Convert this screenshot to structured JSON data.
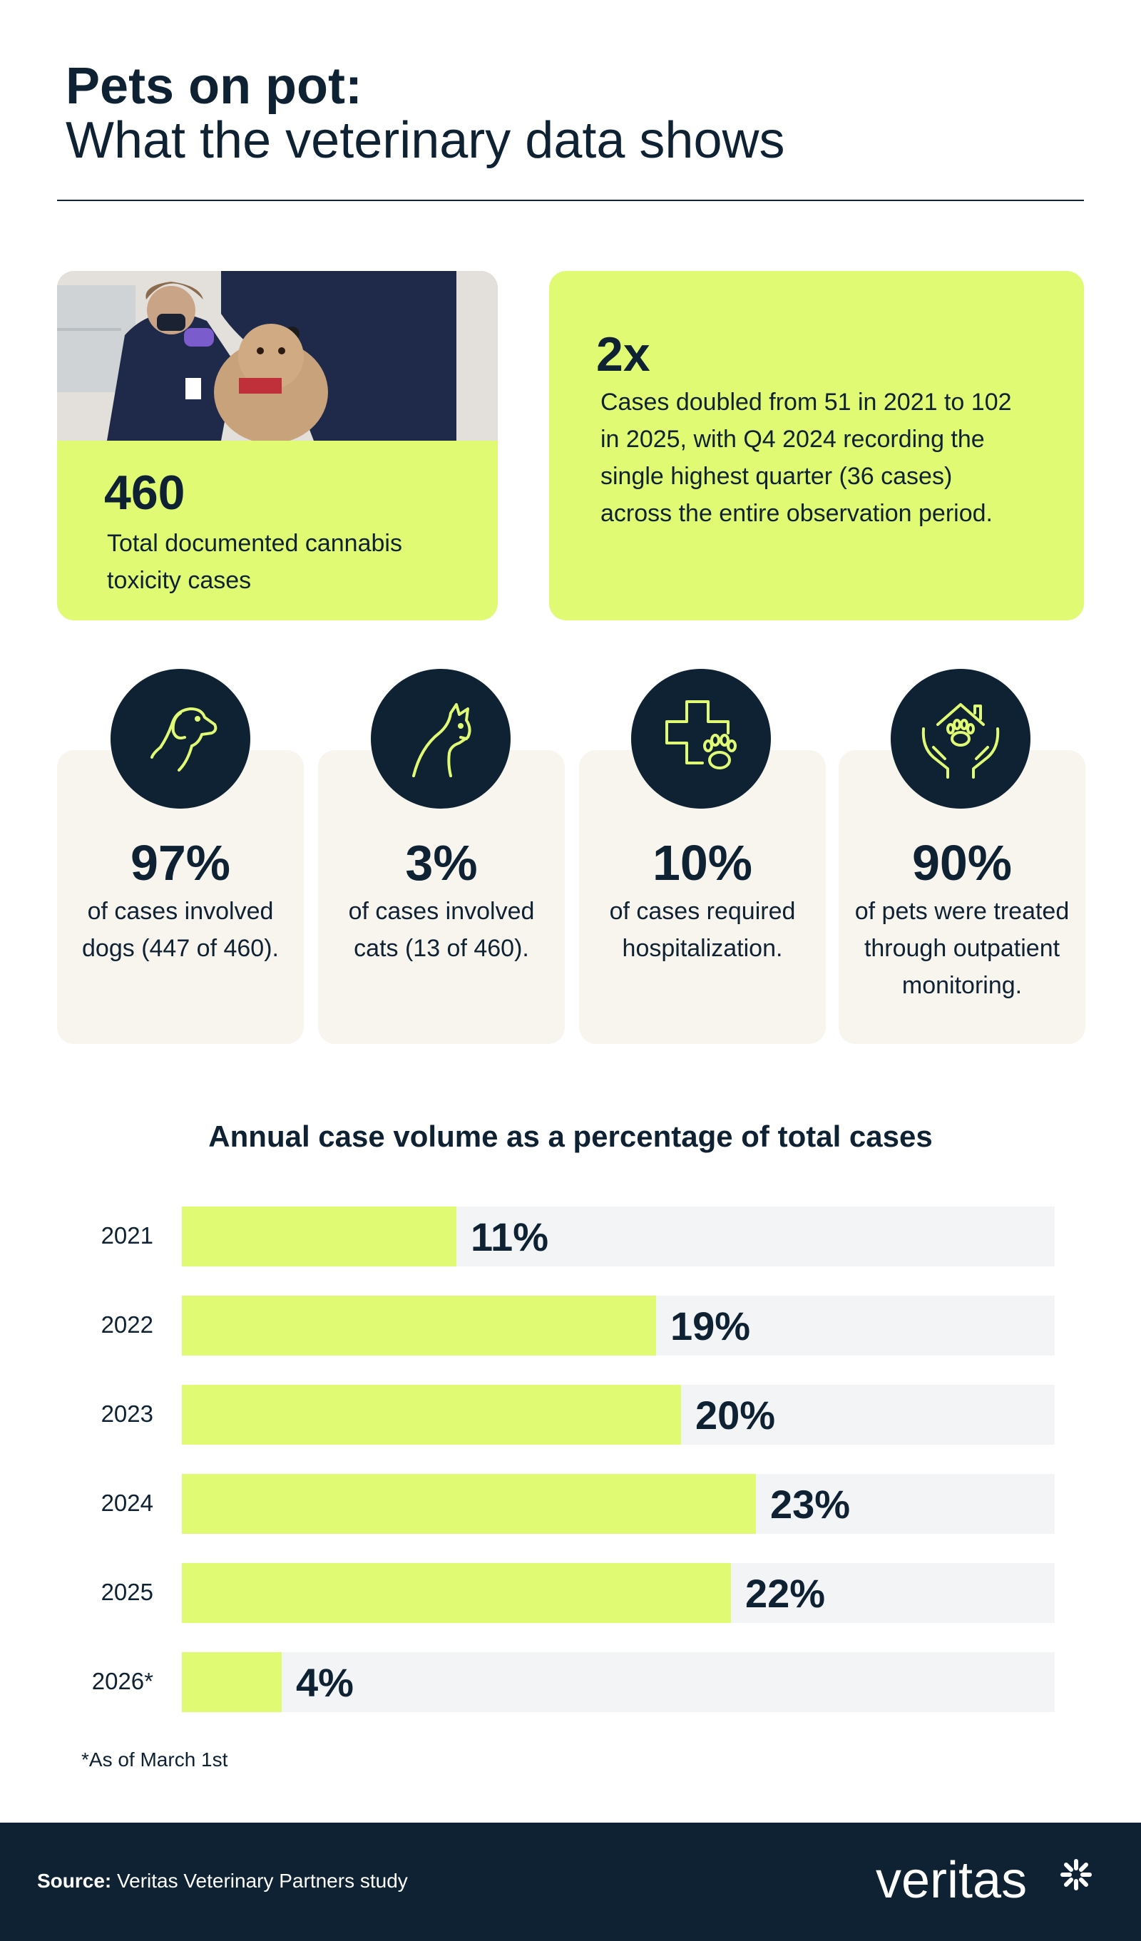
{
  "header": {
    "title_bold": "Pets on pot:",
    "title_regular": "What the veterinary data shows"
  },
  "highlight_cards": {
    "total": {
      "value": "460",
      "text": "Total documented cannabis toxicity cases"
    },
    "growth": {
      "value": "2x",
      "text": "Cases doubled from 51 in 2021 to 102 in 2025, with Q4 2024 recording the single highest quarter (36 cases) across the entire observation period."
    }
  },
  "stats": [
    {
      "icon": "dog-icon",
      "value": "97%",
      "text": "of cases involved dogs (447 of 460)."
    },
    {
      "icon": "cat-icon",
      "value": "3%",
      "text": "of cases involved cats (13 of 460)."
    },
    {
      "icon": "medical-cross-paw-icon",
      "value": "10%",
      "text": "of cases required hospitalization."
    },
    {
      "icon": "house-hands-paw-icon",
      "value": "90%",
      "text": "of pets were treated through outpatient monitoring."
    }
  ],
  "chart_data": {
    "type": "bar",
    "orientation": "horizontal",
    "title": "Annual case volume as a percentage of total cases",
    "categories": [
      "2021",
      "2022",
      "2023",
      "2024",
      "2025",
      "2026*"
    ],
    "values": [
      11,
      19,
      20,
      23,
      22,
      4
    ],
    "value_labels": [
      "11%",
      "19%",
      "20%",
      "23%",
      "22%",
      "4%"
    ],
    "unit": "%",
    "footnote": "*As of March 1st"
  },
  "footer": {
    "source_label": "Source:",
    "source_text": " Veritas Veterinary Partners study",
    "logo_text": "veritas"
  },
  "colors": {
    "navy": "#0f2233",
    "lime": "#e0fa74",
    "cream": "#f8f4ee",
    "track": "#f2f4f6"
  }
}
